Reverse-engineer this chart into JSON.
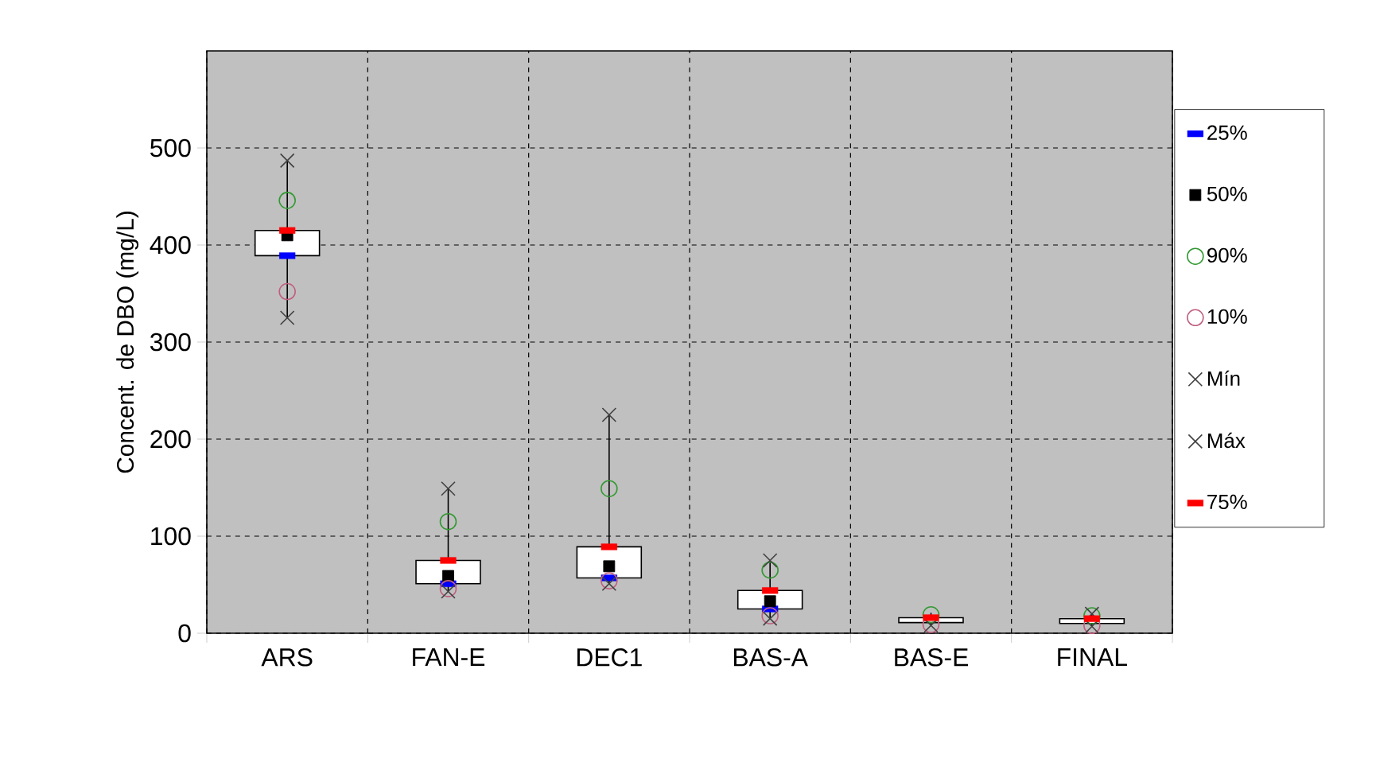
{
  "chart_data": {
    "type": "candlestick",
    "ylabel": "Concent. de DBO (mg/L)",
    "categories": [
      "ARS",
      "FAN-E",
      "DEC1",
      "BAS-A",
      "BAS-E",
      "FINAL"
    ],
    "ylim": [
      0,
      600
    ],
    "yticks": [
      0,
      100,
      200,
      300,
      400,
      500
    ],
    "grid": true,
    "legend": "right",
    "ohlc": [
      [
        389,
        487,
        325,
        415
      ],
      [
        51,
        149,
        43,
        75
      ],
      [
        57,
        225,
        51,
        89
      ],
      [
        25,
        75,
        15,
        44
      ],
      [
        11,
        21,
        8,
        16
      ],
      [
        10,
        20,
        7,
        15
      ]
    ],
    "series": [
      {
        "name": "25%",
        "type": "scatter",
        "color": "#0000ff",
        "values": [
          389,
          51,
          57,
          25,
          null,
          null
        ]
      },
      {
        "name": "50%",
        "type": "scatter",
        "marker": "square",
        "color": "#000000",
        "values": [
          410,
          59,
          69,
          33,
          null,
          null
        ]
      },
      {
        "name": "90%",
        "type": "scatter",
        "marker": "circle",
        "color": "#339933",
        "values": [
          446,
          115,
          149,
          65,
          19,
          18
        ]
      },
      {
        "name": "10%",
        "type": "scatter",
        "marker": "circle",
        "color": "#c06080",
        "values": [
          352,
          46,
          54,
          18,
          9,
          8
        ]
      },
      {
        "name": "Mín",
        "type": "scatter",
        "marker": "cross",
        "color": "#404040",
        "values": [
          325,
          43,
          51,
          15,
          8,
          7
        ]
      },
      {
        "name": "Máx",
        "type": "scatter",
        "marker": "cross",
        "color": "#404040",
        "values": [
          487,
          149,
          225,
          75,
          null,
          20
        ]
      },
      {
        "name": "75%",
        "type": "scatter",
        "color": "#ff0000",
        "values": [
          415,
          75,
          89,
          44,
          16,
          15
        ]
      }
    ]
  }
}
